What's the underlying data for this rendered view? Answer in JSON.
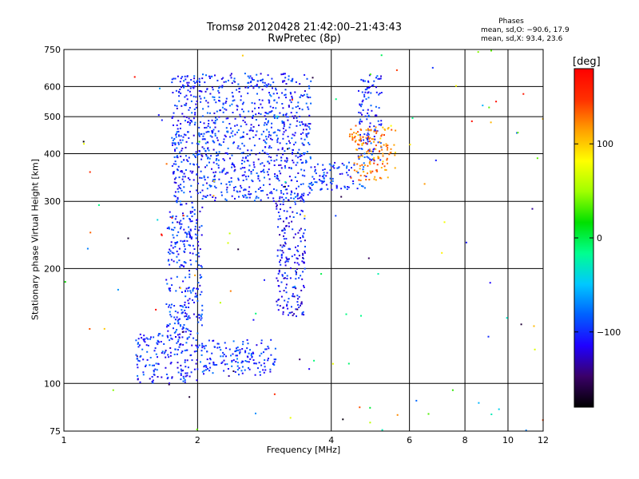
{
  "header": {
    "title": "Tromsø 20120428 21:42:00–21:43:43",
    "subtitle": "RwPretec (8p)"
  },
  "phases": {
    "heading": "Phases",
    "line1": "mean, sd,O: −90.6, 17.9",
    "line2": "mean, sd,X:  93.4, 23.6"
  },
  "colorbar": {
    "unit": "[deg]",
    "ticks": [
      "100",
      "0",
      "−100"
    ],
    "tick_values": [
      100,
      0,
      -100
    ],
    "range": [
      -180,
      180
    ],
    "colors": [
      "#000000",
      "#3a0068",
      "#2000ff",
      "#0060ff",
      "#00c8ff",
      "#00ff90",
      "#00e000",
      "#a0ff00",
      "#ffff00",
      "#ffa000",
      "#ff3000",
      "#ff0000"
    ]
  },
  "chart_data": {
    "type": "scatter",
    "title": "Tromsø 20120428 21:42:00–21:43:43",
    "subtitle": "RwPretec (8p)",
    "xlabel": "Frequency [MHz]",
    "ylabel": "Stationary phase Virtual Height [km]",
    "x_scale": "log",
    "y_scale": "log",
    "xlim": [
      1,
      12
    ],
    "ylim": [
      75,
      750
    ],
    "x_ticks": [
      1,
      2,
      4,
      6,
      8,
      10,
      12
    ],
    "x_tick_labels": [
      "1",
      "2",
      "4",
      "6",
      "8",
      "10",
      "12"
    ],
    "y_ticks": [
      75,
      100,
      200,
      300,
      400,
      500,
      600,
      750
    ],
    "y_tick_labels": [
      "75",
      "100",
      "200",
      "300",
      "400",
      "500",
      "600",
      "750"
    ],
    "grid": true,
    "color_variable": "phase [deg]",
    "series": [
      {
        "role": "O-trace lower",
        "x_range": [
          1.45,
          2.0
        ],
        "y_range": [
          100,
          135
        ],
        "phase_mean": -100
      },
      {
        "role": "O-trace F1 shoulder",
        "x_range": [
          1.7,
          2.05
        ],
        "y_range": [
          135,
          300
        ],
        "phase_mean": -100
      },
      {
        "role": "O-trace E-region",
        "x_range": [
          2.0,
          3.0
        ],
        "y_range": [
          105,
          130
        ],
        "phase_mean": -95
      },
      {
        "role": "O-trace F2",
        "x_range": [
          1.75,
          3.6
        ],
        "y_range": [
          300,
          650
        ],
        "phase_mean": -100
      },
      {
        "role": "O-trace cusp",
        "x_range": [
          3.0,
          3.5
        ],
        "y_range": [
          150,
          310
        ],
        "phase_mean": -110
      },
      {
        "role": "O-trace F2 rise",
        "x_range": [
          3.6,
          4.8
        ],
        "y_range": [
          320,
          380
        ],
        "phase_mean": -95
      },
      {
        "role": "O-trace upper",
        "x_range": [
          4.6,
          5.2
        ],
        "y_range": [
          380,
          650
        ],
        "phase_mean": -100
      },
      {
        "role": "X-trace F2",
        "x_range": [
          4.4,
          5.6
        ],
        "y_range": [
          340,
          470
        ],
        "phase_mean": 120
      }
    ]
  }
}
